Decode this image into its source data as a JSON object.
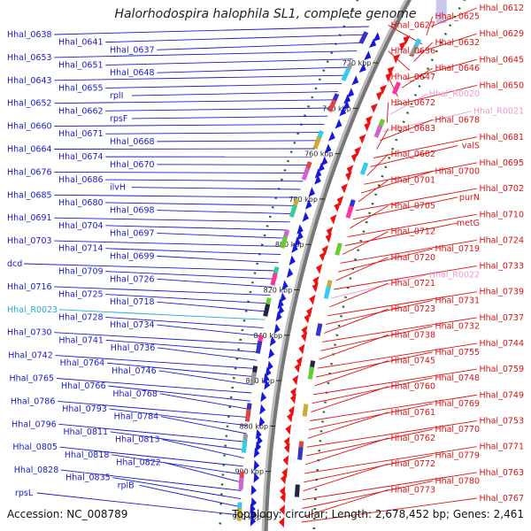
{
  "title": "Halorhodospira halophila SL1, complete genome",
  "accession": "Accession: NC_008789",
  "topology": "Topology: circular; Length: 2,678,452 bp; Genes: 2,461",
  "colors": {
    "left_label": "#1a1acc",
    "right_label": "#dd1111",
    "rna_pink": "#ee99cc",
    "rna_cyan": "#22aacc",
    "backbone": "#777777",
    "tick": "#226622"
  },
  "kbp_ticks": [
    "720 kbp",
    "740 kbp",
    "760 kbp",
    "780 kbp",
    "800 kbp",
    "820 kbp",
    "840 kbp",
    "860 kbp",
    "880 kbp",
    "900 kbp",
    "920 kbp"
  ],
  "left_labels": [
    {
      "text": "Hhal_0638",
      "kind": "gene"
    },
    {
      "text": "Hhal_0641",
      "kind": "gene"
    },
    {
      "text": "Hhal_0637",
      "kind": "gene"
    },
    {
      "text": "Hhal_0653",
      "kind": "gene"
    },
    {
      "text": "Hhal_0651",
      "kind": "gene"
    },
    {
      "text": "Hhal_0648",
      "kind": "gene"
    },
    {
      "text": "Hhal_0643",
      "kind": "gene"
    },
    {
      "text": "Hhal_0655",
      "kind": "gene"
    },
    {
      "text": "rplI",
      "kind": "gene"
    },
    {
      "text": "Hhal_0652",
      "kind": "gene"
    },
    {
      "text": "Hhal_0662",
      "kind": "gene"
    },
    {
      "text": "rpsF",
      "kind": "gene"
    },
    {
      "text": "Hhal_0660",
      "kind": "gene"
    },
    {
      "text": "Hhal_0671",
      "kind": "gene"
    },
    {
      "text": "Hhal_0668",
      "kind": "gene"
    },
    {
      "text": "Hhal_0664",
      "kind": "gene"
    },
    {
      "text": "Hhal_0674",
      "kind": "gene"
    },
    {
      "text": "Hhal_0670",
      "kind": "gene"
    },
    {
      "text": "Hhal_0676",
      "kind": "gene"
    },
    {
      "text": "Hhal_0686",
      "kind": "gene"
    },
    {
      "text": "ilvH",
      "kind": "gene"
    },
    {
      "text": "Hhal_0685",
      "kind": "gene"
    },
    {
      "text": "Hhal_0680",
      "kind": "gene"
    },
    {
      "text": "Hhal_0698",
      "kind": "gene"
    },
    {
      "text": "Hhal_0691",
      "kind": "gene"
    },
    {
      "text": "Hhal_0704",
      "kind": "gene"
    },
    {
      "text": "Hhal_0697",
      "kind": "gene"
    },
    {
      "text": "Hhal_0703",
      "kind": "gene"
    },
    {
      "text": "Hhal_0714",
      "kind": "gene"
    },
    {
      "text": "Hhal_0699",
      "kind": "gene"
    },
    {
      "text": "dcd",
      "kind": "gene"
    },
    {
      "text": "Hhal_0709",
      "kind": "gene"
    },
    {
      "text": "Hhal_0726",
      "kind": "gene"
    },
    {
      "text": "Hhal_0716",
      "kind": "gene"
    },
    {
      "text": "Hhal_0725",
      "kind": "gene"
    },
    {
      "text": "Hhal_0718",
      "kind": "gene"
    },
    {
      "text": "Hhal_R0023",
      "kind": "rna"
    },
    {
      "text": "Hhal_0728",
      "kind": "gene"
    },
    {
      "text": "Hhal_0734",
      "kind": "gene"
    },
    {
      "text": "Hhal_0730",
      "kind": "gene"
    },
    {
      "text": "Hhal_0741",
      "kind": "gene"
    },
    {
      "text": "Hhal_0736",
      "kind": "gene"
    },
    {
      "text": "Hhal_0742",
      "kind": "gene"
    },
    {
      "text": "Hhal_0764",
      "kind": "gene"
    },
    {
      "text": "Hhal_0746",
      "kind": "gene"
    },
    {
      "text": "Hhal_0765",
      "kind": "gene"
    },
    {
      "text": "Hhal_0766",
      "kind": "gene"
    },
    {
      "text": "Hhal_0768",
      "kind": "gene"
    },
    {
      "text": "Hhal_0786",
      "kind": "gene"
    },
    {
      "text": "Hhal_0793",
      "kind": "gene"
    },
    {
      "text": "Hhal_0784",
      "kind": "gene"
    },
    {
      "text": "Hhal_0796",
      "kind": "gene"
    },
    {
      "text": "Hhal_0811",
      "kind": "gene"
    },
    {
      "text": "Hhal_0813",
      "kind": "gene"
    },
    {
      "text": "Hhal_0805",
      "kind": "gene"
    },
    {
      "text": "Hhal_0818",
      "kind": "gene"
    },
    {
      "text": "Hhal_0822",
      "kind": "gene"
    },
    {
      "text": "Hhal_0828",
      "kind": "gene"
    },
    {
      "text": "Hhal_0835",
      "kind": "gene"
    },
    {
      "text": "rplB",
      "kind": "gene"
    },
    {
      "text": "rpsL",
      "kind": "gene"
    }
  ],
  "right_labels": [
    {
      "text": "Hhal_0612",
      "kind": "gene"
    },
    {
      "text": "Hhal_0625",
      "kind": "gene"
    },
    {
      "text": "Hhal_0627",
      "kind": "gene"
    },
    {
      "text": "Hhal_0629",
      "kind": "gene"
    },
    {
      "text": "Hhal_0632",
      "kind": "gene"
    },
    {
      "text": "Hhal_0636",
      "kind": "gene"
    },
    {
      "text": "Hhal_0645",
      "kind": "gene"
    },
    {
      "text": "Hhal_0646",
      "kind": "gene"
    },
    {
      "text": "Hhal_0647",
      "kind": "gene"
    },
    {
      "text": "Hhal_0650",
      "kind": "gene"
    },
    {
      "text": "Hhal_R0020",
      "kind": "rna"
    },
    {
      "text": "Hhal_0672",
      "kind": "gene"
    },
    {
      "text": "Hhal_R0021",
      "kind": "rna"
    },
    {
      "text": "Hhal_0678",
      "kind": "gene"
    },
    {
      "text": "Hhal_0683",
      "kind": "gene"
    },
    {
      "text": "Hhal_0681",
      "kind": "gene"
    },
    {
      "text": "valS",
      "kind": "gene"
    },
    {
      "text": "Hhal_0682",
      "kind": "gene"
    },
    {
      "text": "Hhal_0695",
      "kind": "gene"
    },
    {
      "text": "Hhal_0700",
      "kind": "gene"
    },
    {
      "text": "Hhal_0701",
      "kind": "gene"
    },
    {
      "text": "Hhal_0702",
      "kind": "gene"
    },
    {
      "text": "purN",
      "kind": "gene"
    },
    {
      "text": "Hhal_0705",
      "kind": "gene"
    },
    {
      "text": "Hhal_0710",
      "kind": "gene"
    },
    {
      "text": "metG",
      "kind": "gene"
    },
    {
      "text": "Hhal_0712",
      "kind": "gene"
    },
    {
      "text": "Hhal_0724",
      "kind": "gene"
    },
    {
      "text": "Hhal_0719",
      "kind": "gene"
    },
    {
      "text": "Hhal_0720",
      "kind": "gene"
    },
    {
      "text": "Hhal_0733",
      "kind": "gene"
    },
    {
      "text": "Hhal_R0022",
      "kind": "rna"
    },
    {
      "text": "Hhal_0721",
      "kind": "gene"
    },
    {
      "text": "Hhal_0739",
      "kind": "gene"
    },
    {
      "text": "Hhal_0731",
      "kind": "gene"
    },
    {
      "text": "Hhal_0723",
      "kind": "gene"
    },
    {
      "text": "Hhal_0737",
      "kind": "gene"
    },
    {
      "text": "Hhal_0732",
      "kind": "gene"
    },
    {
      "text": "Hhal_0738",
      "kind": "gene"
    },
    {
      "text": "Hhal_0744",
      "kind": "gene"
    },
    {
      "text": "Hhal_0755",
      "kind": "gene"
    },
    {
      "text": "Hhal_0745",
      "kind": "gene"
    },
    {
      "text": "Hhal_0759",
      "kind": "gene"
    },
    {
      "text": "Hhal_0748",
      "kind": "gene"
    },
    {
      "text": "Hhal_0760",
      "kind": "gene"
    },
    {
      "text": "Hhal_0749",
      "kind": "gene"
    },
    {
      "text": "Hhal_0769",
      "kind": "gene"
    },
    {
      "text": "Hhal_0761",
      "kind": "gene"
    },
    {
      "text": "Hhal_0753",
      "kind": "gene"
    },
    {
      "text": "Hhal_0770",
      "kind": "gene"
    },
    {
      "text": "Hhal_0762",
      "kind": "gene"
    },
    {
      "text": "Hhal_0771",
      "kind": "gene"
    },
    {
      "text": "Hhal_0779",
      "kind": "gene"
    },
    {
      "text": "Hhal_0772",
      "kind": "gene"
    },
    {
      "text": "Hhal_0763",
      "kind": "gene"
    },
    {
      "text": "Hhal_0780",
      "kind": "gene"
    },
    {
      "text": "Hhal_0773",
      "kind": "gene"
    },
    {
      "text": "Hhal_0767",
      "kind": "gene"
    }
  ]
}
